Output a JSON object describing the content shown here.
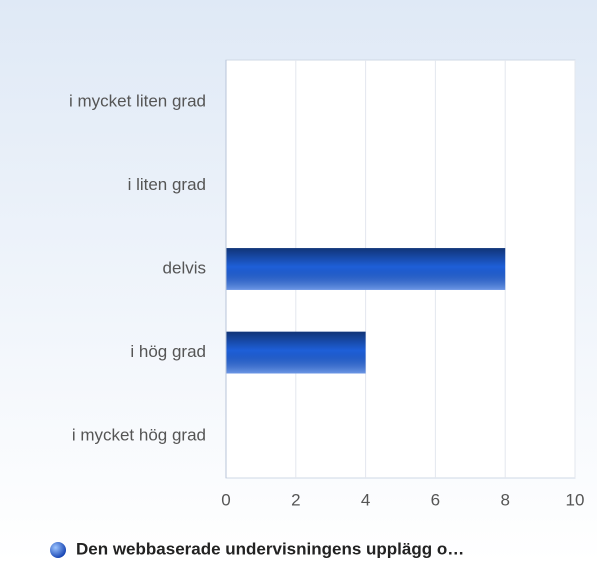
{
  "chart_data": {
    "type": "bar",
    "orientation": "horizontal",
    "categories": [
      "i mycket liten grad",
      "i liten grad",
      "delvis",
      "i hög grad",
      "i mycket hög grad"
    ],
    "series": [
      {
        "name": "Den webbaserade undervisningens upplägg o…",
        "color": "#1e5fd8",
        "values": [
          0,
          0,
          8,
          4,
          0
        ]
      }
    ],
    "xlim": [
      0,
      10
    ],
    "xticks": [
      0,
      2,
      4,
      6,
      8,
      10
    ],
    "grid": true,
    "legend": "bottom"
  }
}
